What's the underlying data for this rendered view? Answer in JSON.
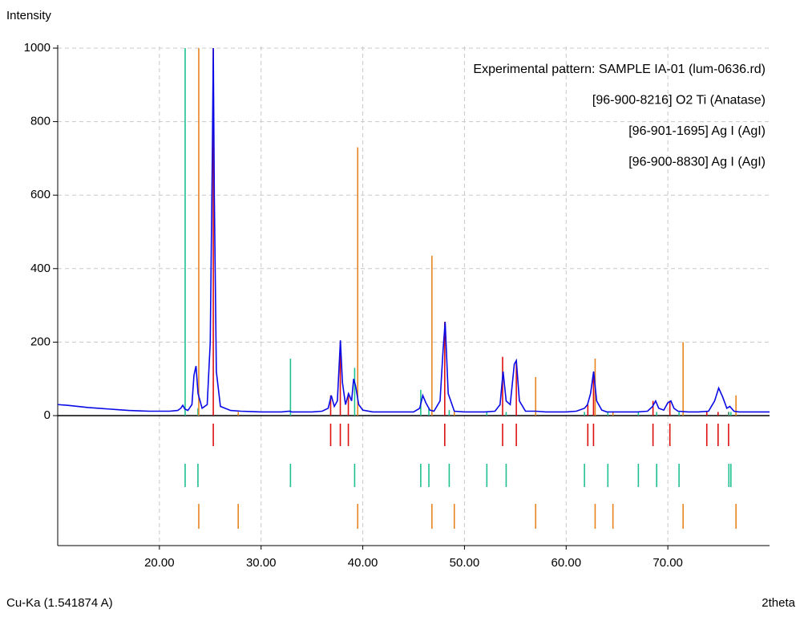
{
  "chart_data": {
    "type": "line",
    "y_label": "Intensity",
    "x_label": "2theta",
    "annotation": "Cu-Ka (1.541874 A)",
    "xlim": [
      10,
      80
    ],
    "ylim": [
      0,
      1000
    ],
    "xticks": [
      {
        "value": 20,
        "label": "20.00"
      },
      {
        "value": 30,
        "label": "30.00"
      },
      {
        "value": 40,
        "label": "40.00"
      },
      {
        "value": 50,
        "label": "50.00"
      },
      {
        "value": 60,
        "label": "60.00"
      },
      {
        "value": 70,
        "label": "70.00"
      }
    ],
    "yticks": [
      0,
      200,
      400,
      600,
      800,
      1000
    ],
    "grid": true,
    "legend": "top-right",
    "series": [
      {
        "name": "Experimental pattern: SAMPLE IA-01 (lum-0636.rd)",
        "color": "#0a0ae6",
        "x": [
          10,
          11,
          12,
          13,
          14,
          15,
          16,
          17,
          18,
          19,
          20,
          21,
          21.8,
          22.1,
          22.3,
          22.5,
          22.8,
          23.2,
          23.4,
          23.6,
          23.8,
          24.2,
          24.7,
          25.0,
          25.2,
          25.3,
          25.4,
          25.6,
          26.0,
          27,
          28,
          29,
          30,
          31,
          32,
          32.8,
          33,
          34,
          35,
          36,
          36.6,
          36.9,
          37.2,
          37.5,
          37.8,
          38.0,
          38.3,
          38.6,
          38.9,
          39.1,
          39.3,
          39.6,
          40,
          41,
          42,
          43,
          44,
          45,
          45.6,
          45.9,
          46.2,
          46.6,
          47,
          47.6,
          47.9,
          48.1,
          48.4,
          49,
          50,
          51,
          52,
          53,
          53.5,
          53.8,
          54.1,
          54.5,
          54.9,
          55.1,
          55.4,
          56,
          57,
          58,
          59,
          60,
          61,
          61.8,
          62.1,
          62.4,
          62.7,
          63.0,
          63.5,
          64,
          65,
          66,
          67,
          68,
          68.5,
          68.8,
          69.1,
          69.6,
          70.0,
          70.3,
          70.6,
          71,
          72,
          73,
          74,
          74.6,
          75.0,
          75.4,
          75.8,
          76.1,
          76.5,
          77,
          78,
          79,
          80
        ],
        "values": [
          30,
          28,
          25,
          22,
          20,
          18,
          16,
          14,
          13,
          12,
          12,
          12,
          14,
          20,
          28,
          18,
          14,
          30,
          110,
          135,
          60,
          20,
          30,
          200,
          700,
          1000,
          600,
          120,
          25,
          14,
          12,
          11,
          10,
          10,
          10,
          12,
          10,
          10,
          10,
          12,
          20,
          55,
          25,
          40,
          205,
          90,
          30,
          60,
          40,
          100,
          80,
          30,
          15,
          10,
          10,
          10,
          10,
          10,
          20,
          55,
          35,
          15,
          12,
          40,
          180,
          255,
          60,
          12,
          10,
          10,
          10,
          12,
          30,
          120,
          40,
          30,
          140,
          150,
          40,
          12,
          12,
          10,
          10,
          10,
          12,
          20,
          30,
          60,
          120,
          40,
          15,
          10,
          10,
          10,
          10,
          12,
          25,
          40,
          20,
          15,
          35,
          40,
          20,
          12,
          10,
          10,
          12,
          40,
          75,
          50,
          20,
          25,
          12,
          10,
          10,
          10,
          10
        ]
      }
    ],
    "reference_patterns": [
      {
        "name": "[96-900-8216] O2 Ti  (Anatase)",
        "color": "#dd1010",
        "x": [
          25.3,
          36.84,
          37.79,
          38.58,
          48.06,
          53.75,
          55.1,
          62.13,
          62.69,
          68.54,
          70.2,
          73.83,
          74.94,
          75.97
        ],
        "values": [
          1000,
          55,
          200,
          60,
          255,
          160,
          150,
          30,
          115,
          40,
          40,
          10,
          10,
          10
        ]
      },
      {
        "name": "[96-901-1695] Ag I  (AgI)",
        "color": "#1fc090",
        "x": [
          22.53,
          23.79,
          32.89,
          39.2,
          45.7,
          46.5,
          48.5,
          52.2,
          54.1,
          61.8,
          64.1,
          67.1,
          68.9,
          71.1,
          76.0,
          76.2
        ],
        "values": [
          1000,
          20,
          155,
          130,
          70,
          20,
          15,
          10,
          10,
          10,
          10,
          10,
          10,
          10,
          10,
          10
        ]
      },
      {
        "name": "[96-900-8830] Ag I  (AgI)",
        "color": "#e88420",
        "x": [
          23.87,
          27.75,
          39.5,
          46.8,
          49.0,
          57.0,
          62.85,
          64.6,
          71.5,
          76.7
        ],
        "values": [
          1000,
          10,
          730,
          435,
          10,
          105,
          155,
          10,
          200,
          55
        ]
      }
    ]
  }
}
